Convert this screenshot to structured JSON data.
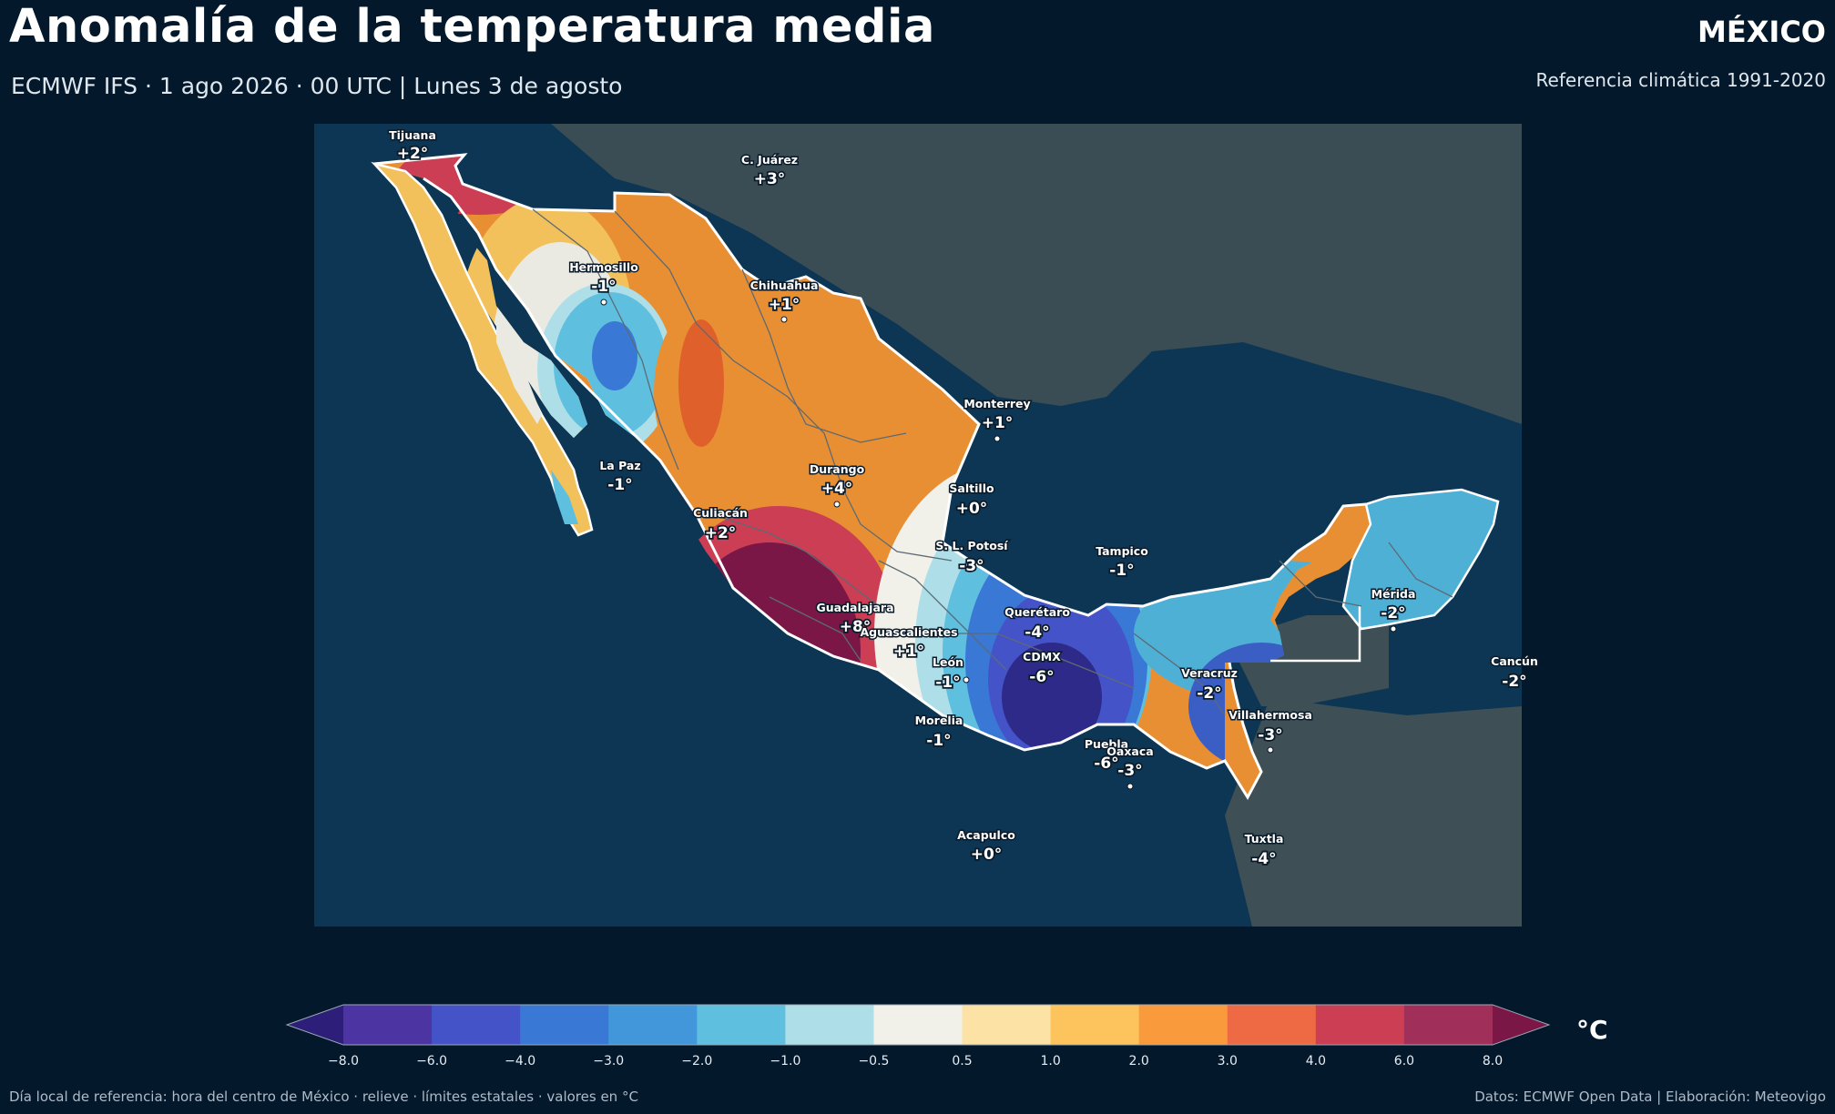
{
  "header": {
    "title": "Anomalía de la temperatura media",
    "subtitle": "ECMWF IFS · 1 ago 2026 · 00 UTC  |  Lunes 3 de agosto",
    "region": "MÉXICO",
    "reference": "Referencia climática 1991-2020"
  },
  "map": {
    "cities": [
      {
        "name": "Tijuana",
        "value": "+2°"
      },
      {
        "name": "C. Juárez",
        "value": "+3°"
      },
      {
        "name": "Hermosillo",
        "value": "-1°"
      },
      {
        "name": "Chihuahua",
        "value": "+1°"
      },
      {
        "name": "Monterrey",
        "value": "+1°"
      },
      {
        "name": "La Paz",
        "value": "-1°"
      },
      {
        "name": "Durango",
        "value": "+4°"
      },
      {
        "name": "Saltillo",
        "value": "+0°"
      },
      {
        "name": "Culiacán",
        "value": "+2°"
      },
      {
        "name": "Tampico",
        "value": "-1°"
      },
      {
        "name": "S. L. Potosí",
        "value": "-3°"
      },
      {
        "name": "Mérida",
        "value": "-2°"
      },
      {
        "name": "Querétaro",
        "value": "-4°"
      },
      {
        "name": "Guadalajara",
        "value": "+8°"
      },
      {
        "name": "Aguascalientes",
        "value": "+1°"
      },
      {
        "name": "Cancún",
        "value": "-2°"
      },
      {
        "name": "CDMX",
        "value": "-6°"
      },
      {
        "name": "León",
        "value": "-1°"
      },
      {
        "name": "Veracruz",
        "value": "-2°"
      },
      {
        "name": "Villahermosa",
        "value": "-3°"
      },
      {
        "name": "Morelia",
        "value": "-1°"
      },
      {
        "name": "Puebla",
        "value": "-6°"
      },
      {
        "name": "Oaxaca",
        "value": "-3°"
      },
      {
        "name": "Acapulco",
        "value": "+0°"
      },
      {
        "name": "Tuxtla",
        "value": "-4°"
      }
    ]
  },
  "legend": {
    "unit": "°C",
    "ticks": [
      "−8.0",
      "−6.0",
      "−4.0",
      "−3.0",
      "−2.0",
      "−1.0",
      "−0.5",
      "0.5",
      "1.0",
      "2.0",
      "3.0",
      "4.0",
      "6.0",
      "8.0"
    ],
    "colors": [
      "#2d1e7a",
      "#4c35a3",
      "#4454c8",
      "#3a78d6",
      "#4296da",
      "#5fbfde",
      "#aedfe9",
      "#f1f1ea",
      "#fde2a6",
      "#fdc45d",
      "#f99a3c",
      "#ee6a45",
      "#cc3e53",
      "#a0305a",
      "#7b1747"
    ],
    "extend_low_color": "#2d1e7a",
    "extend_high_color": "#7b1747"
  },
  "footer": {
    "left": "Día local de referencia: hora del centro de México · relieve · límites estatales · valores en °C",
    "right": "Datos: ECMWF Open Data | Elaboración: Meteovigo"
  }
}
